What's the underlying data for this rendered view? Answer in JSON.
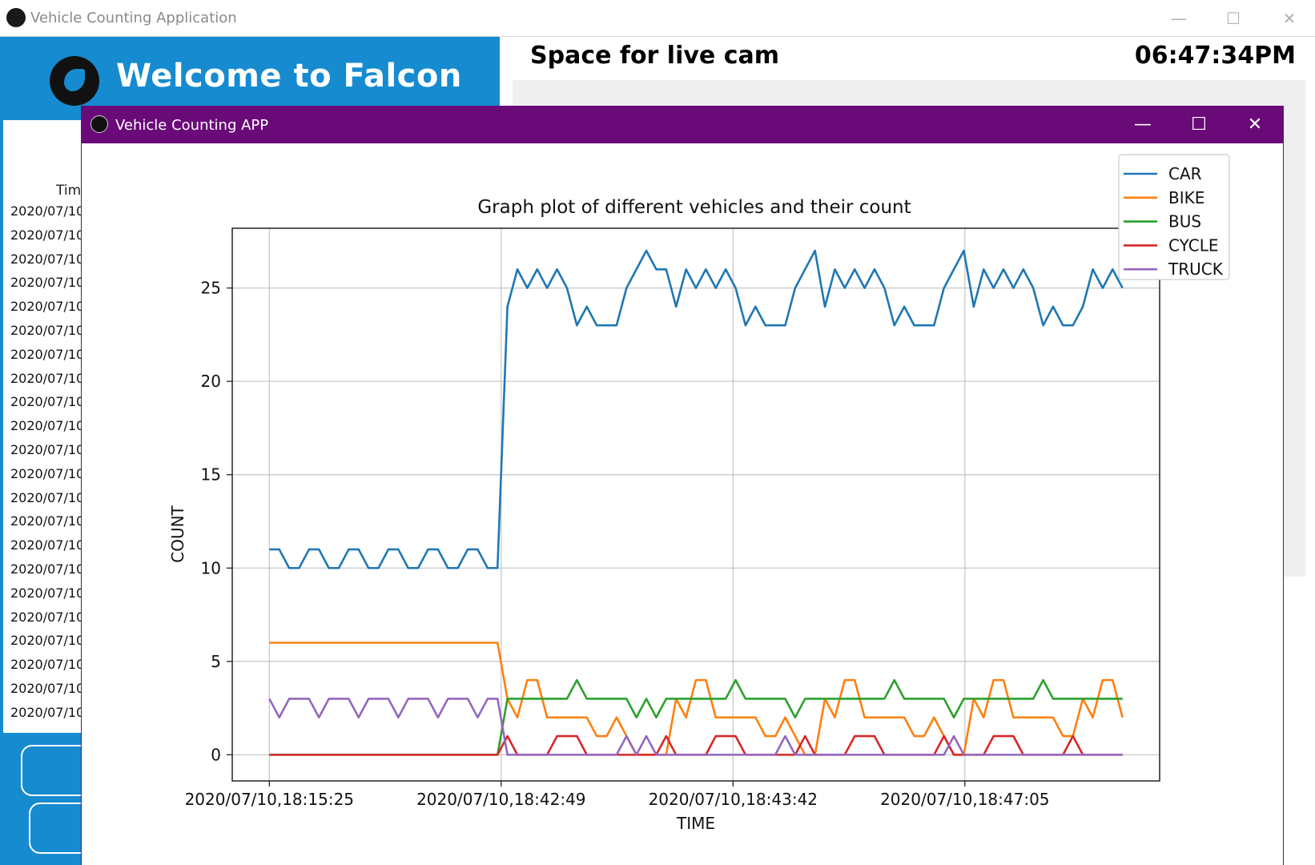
{
  "main_window": {
    "title": "Vehicle Counting Application",
    "controls": {
      "minimize": "—",
      "maximize": "☐",
      "close": "✕"
    }
  },
  "left_panel": {
    "welcome_text": "Welcome to Falcon",
    "logo_icon": "falcon-logo-icon",
    "table_header": "Tim",
    "rows": [
      "2020/07/10",
      "2020/07/10",
      "2020/07/10",
      "2020/07/10",
      "2020/07/10",
      "2020/07/10",
      "2020/07/10",
      "2020/07/10",
      "2020/07/10",
      "2020/07/10",
      "2020/07/10",
      "2020/07/10",
      "2020/07/10",
      "2020/07/10",
      "2020/07/10",
      "2020/07/10",
      "2020/07/10",
      "2020/07/10",
      "2020/07/10",
      "2020/07/10",
      "2020/07/10",
      "2020/07/10"
    ]
  },
  "cam": {
    "title": "Space for live cam",
    "clock": "06:47:34PM"
  },
  "popup": {
    "title": "Vehicle Counting APP",
    "controls": {
      "minimize": "—",
      "maximize": "☐",
      "close": "✕"
    }
  },
  "colors": {
    "accent_blue": "#168bd0",
    "popup_purple": "#6a0a78"
  },
  "chart_data": {
    "type": "line",
    "title": "Graph plot of different vehicles and their count",
    "xlabel": "TIME",
    "ylabel": "COUNT",
    "ylim": [
      -1.4,
      28.2
    ],
    "yticks": [
      0,
      5,
      10,
      15,
      20,
      25
    ],
    "xlim": [
      -2,
      48
    ],
    "xticks": [
      {
        "x": 0,
        "label": "2020/07/10,18:15:25"
      },
      {
        "x": 12.5,
        "label": "2020/07/10,18:42:49"
      },
      {
        "x": 25,
        "label": "2020/07/10,18:43:42"
      },
      {
        "x": 37.5,
        "label": "2020/07/10,18:47:05"
      }
    ],
    "grid": true,
    "legend_position": "top-right",
    "series": [
      {
        "name": "CAR",
        "color": "#1f77b4",
        "values": [
          11,
          11,
          10,
          10,
          11,
          11,
          10,
          10,
          11,
          11,
          10,
          10,
          11,
          11,
          10,
          10,
          11,
          11,
          10,
          10,
          11,
          11,
          10,
          10,
          24,
          26,
          25,
          26,
          25,
          26,
          25,
          23,
          24,
          23,
          23,
          23,
          25,
          26,
          27,
          26,
          26,
          24,
          26,
          25,
          26,
          25,
          26,
          25,
          23,
          24,
          23,
          23,
          23,
          25,
          26,
          27,
          24,
          26,
          25,
          26,
          25,
          26,
          25,
          23,
          24,
          23,
          23,
          23,
          25,
          26,
          27,
          24,
          26,
          25,
          26,
          25,
          26,
          25,
          23,
          24,
          23,
          23,
          24,
          26,
          25,
          26,
          25
        ]
      },
      {
        "name": "BIKE",
        "color": "#ff7f0e",
        "values": [
          6,
          6,
          6,
          6,
          6,
          6,
          6,
          6,
          6,
          6,
          6,
          6,
          6,
          6,
          6,
          6,
          6,
          6,
          6,
          6,
          6,
          6,
          6,
          6,
          3,
          2,
          4,
          4,
          2,
          2,
          2,
          2,
          2,
          1,
          1,
          2,
          1,
          0,
          0,
          0,
          0,
          3,
          2,
          4,
          4,
          2,
          2,
          2,
          2,
          2,
          1,
          1,
          2,
          1,
          0,
          0,
          3,
          2,
          4,
          4,
          2,
          2,
          2,
          2,
          2,
          1,
          1,
          2,
          1,
          0,
          0,
          3,
          2,
          4,
          4,
          2,
          2,
          2,
          2,
          2,
          1,
          1,
          3,
          2,
          4,
          4,
          2
        ]
      },
      {
        "name": "BUS",
        "color": "#2ca02c",
        "values": [
          0,
          0,
          0,
          0,
          0,
          0,
          0,
          0,
          0,
          0,
          0,
          0,
          0,
          0,
          0,
          0,
          0,
          0,
          0,
          0,
          0,
          0,
          0,
          0,
          3,
          3,
          3,
          3,
          3,
          3,
          3,
          4,
          3,
          3,
          3,
          3,
          3,
          2,
          3,
          2,
          3,
          3,
          3,
          3,
          3,
          3,
          3,
          4,
          3,
          3,
          3,
          3,
          3,
          2,
          3,
          3,
          3,
          3,
          3,
          3,
          3,
          3,
          3,
          4,
          3,
          3,
          3,
          3,
          3,
          2,
          3,
          3,
          3,
          3,
          3,
          3,
          3,
          3,
          4,
          3,
          3,
          3,
          3,
          3,
          3,
          3,
          3
        ]
      },
      {
        "name": "CYCLE",
        "color": "#d62728",
        "values": [
          0,
          0,
          0,
          0,
          0,
          0,
          0,
          0,
          0,
          0,
          0,
          0,
          0,
          0,
          0,
          0,
          0,
          0,
          0,
          0,
          0,
          0,
          0,
          0,
          1,
          0,
          0,
          0,
          0,
          1,
          1,
          1,
          0,
          0,
          0,
          0,
          0,
          0,
          0,
          0,
          1,
          0,
          0,
          0,
          0,
          1,
          1,
          1,
          0,
          0,
          0,
          0,
          0,
          0,
          1,
          0,
          0,
          0,
          0,
          1,
          1,
          1,
          0,
          0,
          0,
          0,
          0,
          0,
          1,
          0,
          0,
          0,
          0,
          1,
          1,
          1,
          0,
          0,
          0,
          0,
          0,
          1,
          0,
          0,
          0,
          0,
          0
        ]
      },
      {
        "name": "TRUCK",
        "color": "#9467bd",
        "values": [
          3,
          2,
          3,
          3,
          3,
          2,
          3,
          3,
          3,
          2,
          3,
          3,
          3,
          2,
          3,
          3,
          3,
          2,
          3,
          3,
          3,
          2,
          3,
          3,
          0,
          0,
          0,
          0,
          0,
          0,
          0,
          0,
          0,
          0,
          0,
          0,
          1,
          0,
          1,
          0,
          0,
          0,
          0,
          0,
          0,
          0,
          0,
          0,
          0,
          0,
          0,
          0,
          1,
          0,
          0,
          0,
          0,
          0,
          0,
          0,
          0,
          0,
          0,
          0,
          0,
          0,
          0,
          0,
          0,
          1,
          0,
          0,
          0,
          0,
          0,
          0,
          0,
          0,
          0,
          0,
          0,
          0,
          0,
          0,
          0,
          0,
          0
        ]
      }
    ]
  }
}
